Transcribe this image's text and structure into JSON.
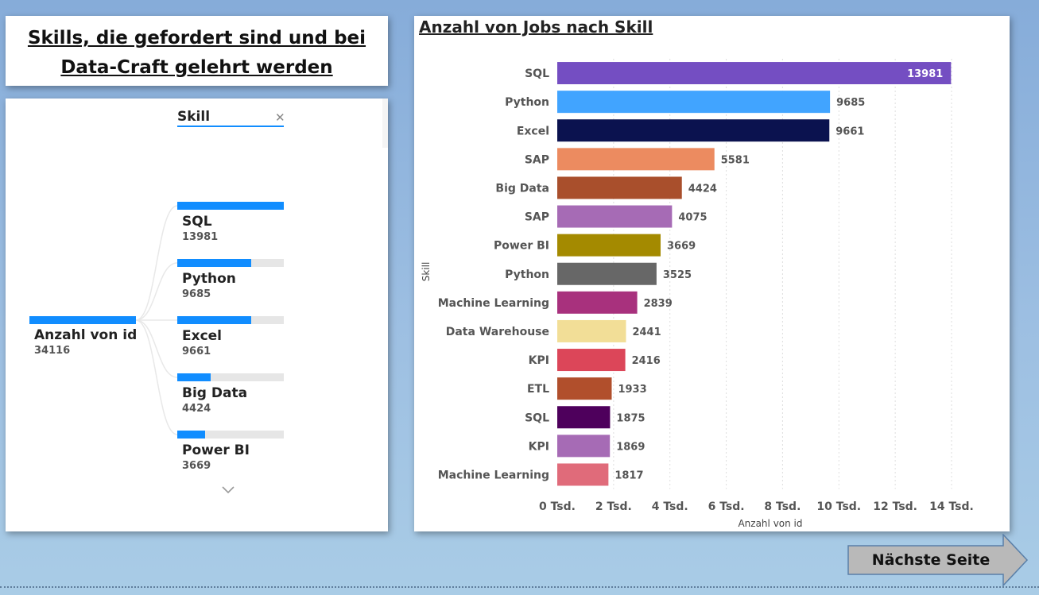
{
  "page": {
    "title_line1": "Skills, die gefordert sind und bei",
    "title_line2": "Data-Craft gelehrt werden",
    "next_button": "Nächste Seite"
  },
  "tree": {
    "filter_label": "Skill",
    "clear_icon": "close-icon",
    "expand_icon": "chevron-down-icon",
    "root": {
      "label": "Anzahl von id",
      "value": "34116"
    },
    "nodes": [
      {
        "label": "SQL",
        "value": "13981",
        "fraction": 1.0
      },
      {
        "label": "Python",
        "value": "9685",
        "fraction": 0.693
      },
      {
        "label": "Excel",
        "value": "9661",
        "fraction": 0.691
      },
      {
        "label": "Big Data",
        "value": "4424",
        "fraction": 0.316
      },
      {
        "label": "Power BI",
        "value": "3669",
        "fraction": 0.262
      }
    ],
    "accent": "#118dff"
  },
  "chart_data": {
    "type": "bar",
    "orientation": "horizontal",
    "title": "Anzahl von Jobs nach Skill",
    "xlabel": "Anzahl von id",
    "ylabel": "Skill",
    "xlim": [
      0,
      14000
    ],
    "xticks": [
      0,
      2000,
      4000,
      6000,
      8000,
      10000,
      12000,
      14000
    ],
    "xtick_labels": [
      "0 Tsd.",
      "2 Tsd.",
      "4 Tsd.",
      "6 Tsd.",
      "8 Tsd.",
      "10 Tsd.",
      "12 Tsd.",
      "14 Tsd."
    ],
    "grid": "vertical-dotted",
    "categories": [
      "SQL",
      "Python",
      "Excel",
      "SAP",
      "Big Data",
      "SAP",
      "Power BI",
      "Python",
      "Machine Learning",
      "Data Warehouse",
      "KPI",
      "ETL",
      "SQL",
      "KPI",
      "Machine Learning"
    ],
    "values": [
      13981,
      9685,
      9661,
      5581,
      4424,
      4075,
      3669,
      3525,
      2839,
      2441,
      2416,
      1933,
      1875,
      1869,
      1817
    ],
    "value_labels": [
      "13981",
      "9685",
      "9661",
      "5581",
      "4424",
      "4075",
      "3669",
      "3525",
      "2839",
      "2441",
      "2416",
      "1933",
      "1875",
      "1869",
      "1817"
    ],
    "colors": [
      "#744ec2",
      "#41a4ff",
      "#0b124f",
      "#ec8b60",
      "#a94f2c",
      "#a66bb5",
      "#a48a00",
      "#676767",
      "#a8317d",
      "#f2de97",
      "#dc4659",
      "#b14f2c",
      "#4e005c",
      "#a66bb5",
      "#e06b7a"
    ]
  }
}
